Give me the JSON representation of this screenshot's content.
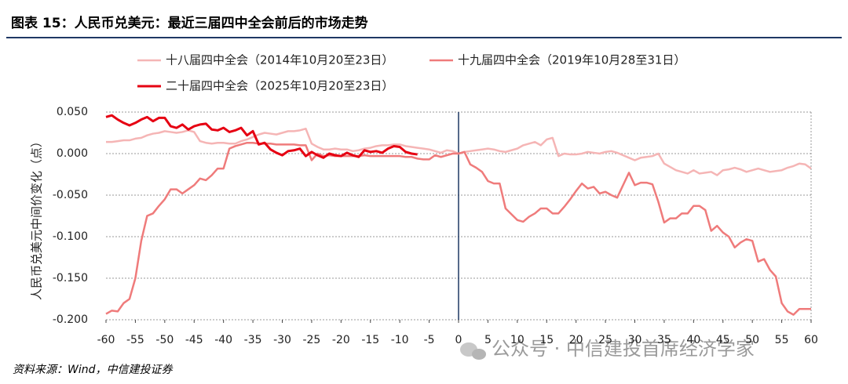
{
  "header": {
    "title": "图表 15：人民币兑美元：最近三届四中全会前后的市场走势"
  },
  "footer": {
    "source": "资料来源：Wind，中信建投证券",
    "watermark": "公众号 · 中信建投首席经济学家"
  },
  "chart_data": {
    "type": "line",
    "y_label": "人民币兑美元中间价变化（点）",
    "legend": "top",
    "grid": true,
    "vline_x": 0,
    "vline_color": "#1f3864",
    "xlim": [
      -60,
      60
    ],
    "xticks": [
      -60,
      -55,
      -50,
      -45,
      -40,
      -35,
      -30,
      -25,
      -20,
      -15,
      -10,
      -5,
      0,
      5,
      10,
      15,
      20,
      25,
      30,
      35,
      40,
      45,
      50,
      55,
      60
    ],
    "ylim": [
      -0.2,
      0.05
    ],
    "yticks": [
      {
        "value": 0.05,
        "label": "0.050"
      },
      {
        "value": 0,
        "label": "0.000"
      },
      {
        "value": -0.05,
        "label": "-0.050"
      },
      {
        "value": -0.1,
        "label": "-0.100"
      },
      {
        "value": -0.15,
        "label": "-0.150"
      },
      {
        "value": -0.2,
        "label": "-0.200"
      }
    ],
    "x": [
      -60,
      -59,
      -58,
      -57,
      -56,
      -55,
      -54,
      -53,
      -52,
      -51,
      -50,
      -49,
      -48,
      -47,
      -46,
      -45,
      -44,
      -43,
      -42,
      -41,
      -40,
      -39,
      -38,
      -37,
      -36,
      -35,
      -34,
      -33,
      -32,
      -31,
      -30,
      -29,
      -28,
      -27,
      -26,
      -25,
      -24,
      -23,
      -22,
      -21,
      -20,
      -19,
      -18,
      -17,
      -16,
      -15,
      -14,
      -13,
      -12,
      -11,
      -10,
      -9,
      -8,
      -7,
      -6,
      -5,
      -4,
      -3,
      -2,
      -1,
      0,
      1,
      2,
      3,
      4,
      5,
      6,
      7,
      8,
      9,
      10,
      11,
      12,
      13,
      14,
      15,
      16,
      17,
      18,
      19,
      20,
      21,
      22,
      23,
      24,
      25,
      26,
      27,
      28,
      29,
      30,
      31,
      32,
      33,
      34,
      35,
      36,
      37,
      38,
      39,
      40,
      41,
      42,
      43,
      44,
      45,
      46,
      47,
      48,
      49,
      50,
      51,
      52,
      53,
      54,
      55,
      56,
      57,
      58,
      59,
      60
    ],
    "series": [
      {
        "name": "十八届四中全会（2014年10月20至23日）",
        "color": "#f5b5b5",
        "width": 2.5,
        "values": [
          0.014,
          0.014,
          0.015,
          0.016,
          0.016,
          0.018,
          0.019,
          0.022,
          0.024,
          0.025,
          0.027,
          0.026,
          0.025,
          0.026,
          0.028,
          0.026,
          0.015,
          0.013,
          0.012,
          0.013,
          0.013,
          0.012,
          0.012,
          0.015,
          0.017,
          0.02,
          0.023,
          0.025,
          0.024,
          0.023,
          0.025,
          0.027,
          0.027,
          0.028,
          0.03,
          0.012,
          0.008,
          0.005,
          0.005,
          0.006,
          0.005,
          0.005,
          0.003,
          0.004,
          0.006,
          0.007,
          0.009,
          0.01,
          0.01,
          0.011,
          0.011,
          0.009,
          0.008,
          0.007,
          0.006,
          0.005,
          0.003,
          0.001,
          0.004,
          0.003,
          0.0,
          0.002,
          0.003,
          0.004,
          0.005,
          0.006,
          0.005,
          0.003,
          0.002,
          0.004,
          0.006,
          0.01,
          0.012,
          0.014,
          0.01,
          0.017,
          0.019,
          -0.003,
          0.0,
          -0.001,
          -0.001,
          0.0,
          0.002,
          0.001,
          0.0,
          0.002,
          0.003,
          0.001,
          -0.002,
          -0.005,
          -0.008,
          -0.005,
          -0.004,
          -0.003,
          0.0,
          -0.012,
          -0.016,
          -0.02,
          -0.022,
          -0.024,
          -0.02,
          -0.024,
          -0.023,
          -0.022,
          -0.026,
          -0.02,
          -0.019,
          -0.017,
          -0.019,
          -0.022,
          -0.02,
          -0.018,
          -0.02,
          -0.022,
          -0.021,
          -0.02,
          -0.017,
          -0.015,
          -0.012,
          -0.013,
          -0.018
        ]
      },
      {
        "name": "十九届四中全会（2019年10月28至31日）",
        "color": "#ef7b7b",
        "width": 2.5,
        "values": [
          -0.193,
          -0.189,
          -0.19,
          -0.18,
          -0.175,
          -0.15,
          -0.105,
          -0.075,
          -0.072,
          -0.063,
          -0.055,
          -0.043,
          -0.043,
          -0.048,
          -0.043,
          -0.038,
          -0.03,
          -0.032,
          -0.026,
          -0.018,
          -0.018,
          0.006,
          0.009,
          0.011,
          0.013,
          0.013,
          0.012,
          0.012,
          0.012,
          0.011,
          0.011,
          0.011,
          0.011,
          0.01,
          0.01,
          -0.008,
          0.0,
          -0.003,
          -0.002,
          -0.003,
          -0.003,
          -0.003,
          -0.003,
          -0.003,
          -0.002,
          -0.003,
          -0.003,
          -0.003,
          -0.003,
          -0.003,
          -0.003,
          -0.004,
          -0.004,
          -0.006,
          -0.007,
          -0.007,
          -0.002,
          -0.004,
          -0.002,
          0.0,
          0.0,
          0.002,
          -0.013,
          -0.017,
          -0.022,
          -0.033,
          -0.036,
          -0.036,
          -0.066,
          -0.073,
          -0.08,
          -0.082,
          -0.076,
          -0.072,
          -0.066,
          -0.066,
          -0.072,
          -0.072,
          -0.064,
          -0.055,
          -0.045,
          -0.036,
          -0.042,
          -0.04,
          -0.048,
          -0.046,
          -0.05,
          -0.053,
          -0.038,
          -0.023,
          -0.038,
          -0.035,
          -0.035,
          -0.037,
          -0.058,
          -0.083,
          -0.078,
          -0.078,
          -0.072,
          -0.072,
          -0.063,
          -0.063,
          -0.068,
          -0.093,
          -0.087,
          -0.095,
          -0.1,
          -0.113,
          -0.107,
          -0.103,
          -0.105,
          -0.13,
          -0.127,
          -0.14,
          -0.148,
          -0.18,
          -0.19,
          -0.194,
          -0.187,
          -0.187,
          -0.187
        ]
      },
      {
        "name": "二十届四中全会（2025年10月20至23日）",
        "color": "#e60012",
        "width": 3,
        "values": [
          0.044,
          0.046,
          0.041,
          0.037,
          0.034,
          0.037,
          0.041,
          0.044,
          0.039,
          0.043,
          0.043,
          0.033,
          0.031,
          0.035,
          0.029,
          0.033,
          0.035,
          0.036,
          0.029,
          0.028,
          0.031,
          0.026,
          0.028,
          0.031,
          0.022,
          0.027,
          0.011,
          0.013,
          0.005,
          0.001,
          -0.002,
          0.003,
          0.004,
          0.006,
          -0.003,
          0.002,
          -0.002,
          -0.005,
          0.0,
          -0.002,
          -0.003,
          0.001,
          -0.002,
          -0.004,
          0.004,
          0.002,
          0.003,
          0.001,
          0.006,
          0.009,
          0.008,
          0.002,
          0.0,
          -0.001,
          null,
          null,
          null,
          null,
          null,
          null,
          null,
          null,
          null,
          null,
          null,
          null,
          null,
          null,
          null,
          null,
          null,
          null,
          null,
          null,
          null,
          null,
          null,
          null,
          null,
          null,
          null,
          null,
          null,
          null,
          null,
          null,
          null,
          null,
          null,
          null,
          null,
          null,
          null,
          null,
          null,
          null,
          null,
          null,
          null,
          null,
          null,
          null,
          null,
          null,
          null,
          null,
          null,
          null,
          null,
          null,
          null,
          null,
          null,
          null,
          null,
          null,
          null,
          null,
          null,
          null,
          null
        ]
      }
    ]
  }
}
